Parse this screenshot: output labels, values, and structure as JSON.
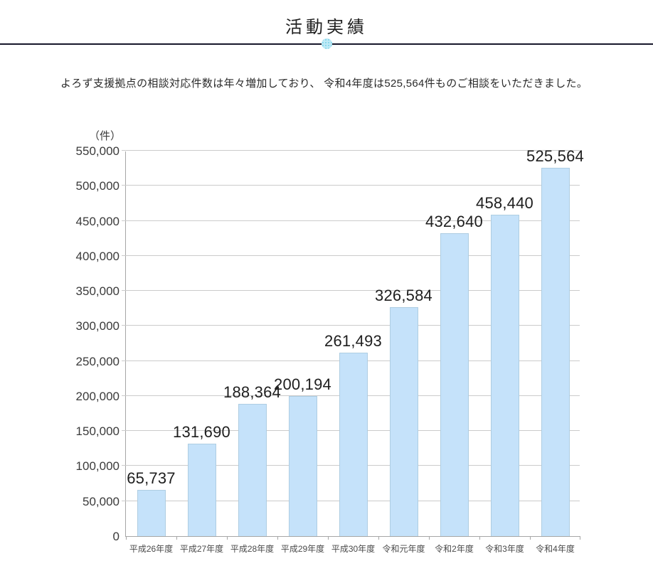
{
  "page": {
    "title": "活動実績",
    "subtitle": "よろず支援拠点の相談対応件数は年々増加しており、 令和4年度は525,564件ものご相談をいただきました。"
  },
  "chart_data": {
    "type": "bar",
    "title": "活動実績",
    "unit_label": "（件）",
    "categories": [
      "平成26年度",
      "平成27年度",
      "平成28年度",
      "平成29年度",
      "平成30年度",
      "令和元年度",
      "令和2年度",
      "令和3年度",
      "令和4年度"
    ],
    "values": [
      65737,
      131690,
      188364,
      200194,
      261493,
      326584,
      432640,
      458440,
      525564
    ],
    "value_labels": [
      "65,737",
      "131,690",
      "188,364",
      "200,194",
      "261,493",
      "326,584",
      "432,640",
      "458,440",
      "525,564"
    ],
    "xlabel": "",
    "ylabel": "（件）",
    "ylim": [
      0,
      550000
    ],
    "ytick_interval": 50000,
    "ytick_labels": [
      "0",
      "50,000",
      "100,000",
      "150,000",
      "200,000",
      "250,000",
      "300,000",
      "350,000",
      "400,000",
      "450,000",
      "500,000",
      "550,000"
    ],
    "grid": true,
    "legend": false,
    "bar_color": "#c5e2fa",
    "bar_border_color": "#aecde2",
    "grid_color": "#cbcbcb",
    "axis_color": "#a6a6a6"
  },
  "colors": {
    "divider": "#17172b",
    "accent_dot": "#bfeaf6",
    "title_text": "#1f1f1f"
  }
}
